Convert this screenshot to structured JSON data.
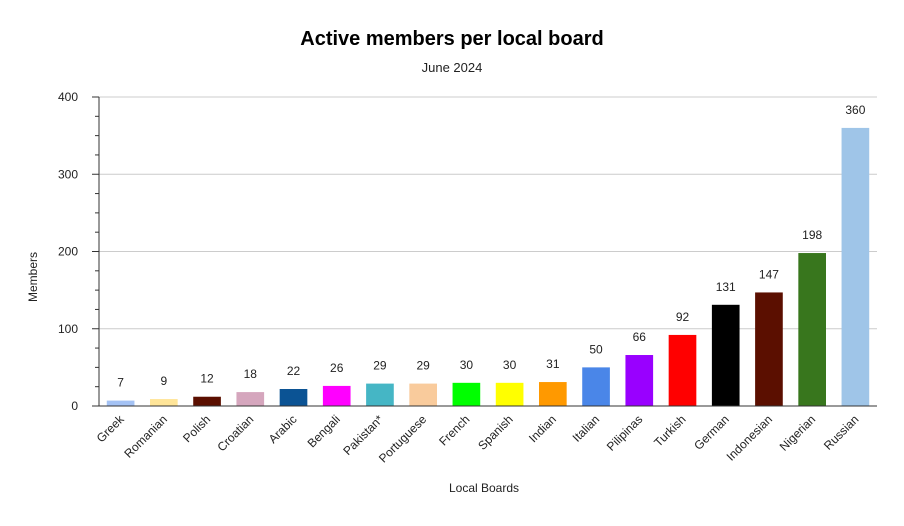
{
  "chart_data": {
    "type": "bar",
    "title": "Active members per local board",
    "subtitle": "June 2024",
    "xlabel": "Local Boards",
    "ylabel": "Members",
    "ylim": [
      0,
      400
    ],
    "yticks": [
      0,
      100,
      200,
      300,
      400
    ],
    "grid": true,
    "legend": "none",
    "categories": [
      "Greek",
      "Romanian",
      "Polish",
      "Croatian",
      "Arabic",
      "Bengali",
      "Pakistan*",
      "Portuguese",
      "French",
      "Spanish",
      "Indian",
      "Italian",
      "Pilipinas",
      "Turkish",
      "German",
      "Indonesian",
      "Nigerian",
      "Russian"
    ],
    "values": [
      7,
      9,
      12,
      18,
      22,
      26,
      29,
      29,
      30,
      30,
      31,
      50,
      66,
      92,
      131,
      147,
      198,
      360
    ],
    "colors": [
      "#a4c2f4",
      "#ffe599",
      "#5b0f00",
      "#d5a6bd",
      "#0b5394",
      "#ff00ff",
      "#45b6c5",
      "#f9cb9c",
      "#00ff00",
      "#ffff00",
      "#ff9900",
      "#4a86e8",
      "#9900ff",
      "#ff0000",
      "#000000",
      "#5b0f00",
      "#38761d",
      "#9fc5e8"
    ]
  }
}
